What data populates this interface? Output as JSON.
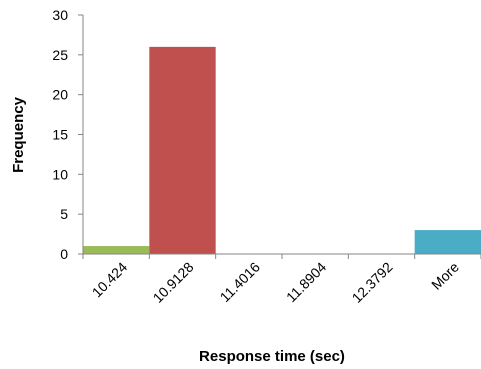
{
  "chart_data": {
    "type": "bar",
    "categories": [
      "10.424",
      "10.9128",
      "11.4016",
      "11.8904",
      "12.3792",
      "More"
    ],
    "values": [
      1,
      26,
      0,
      0,
      0,
      3
    ],
    "colors": [
      "#9BBB59",
      "#C0504D",
      "#4F81BD",
      "#8064A2",
      "#F79646",
      "#4BACC6"
    ],
    "xlabel": "Response time (sec)",
    "ylabel": "Frequency",
    "ylim": [
      0,
      30
    ],
    "yticks": [
      0,
      5,
      10,
      15,
      20,
      25,
      30
    ],
    "grid": false,
    "legend": "none"
  }
}
